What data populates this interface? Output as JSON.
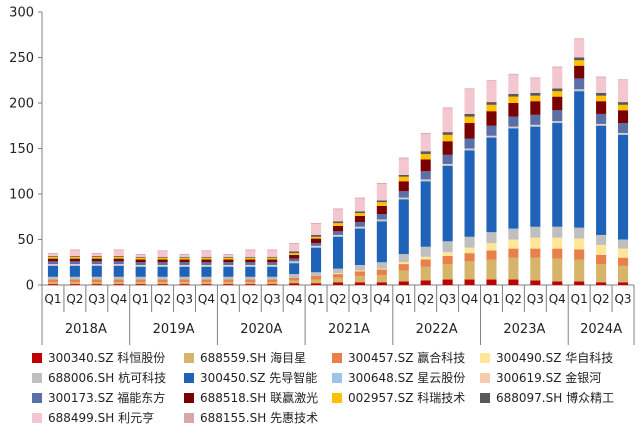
{
  "chart_data": {
    "type": "bar",
    "stacked": true,
    "title": "",
    "xlabel": "",
    "ylabel": "",
    "ylim": [
      0,
      300
    ],
    "yticks": [
      0,
      50,
      100,
      150,
      200,
      250,
      300
    ],
    "grid": false,
    "legend_position": "bottom",
    "quarter_labels": [
      "Q1",
      "Q2",
      "Q3",
      "Q4"
    ],
    "years": [
      "2018A",
      "2019A",
      "2020A",
      "2021A",
      "2022A",
      "2023A",
      "2024A"
    ],
    "categories": [
      "2018A Q1",
      "2018A Q2",
      "2018A Q3",
      "2018A Q4",
      "2019A Q1",
      "2019A Q2",
      "2019A Q3",
      "2019A Q4",
      "2020A Q1",
      "2020A Q2",
      "2020A Q3",
      "2020A Q4",
      "2021A Q1",
      "2021A Q2",
      "2021A Q3",
      "2021A Q4",
      "2022A Q1",
      "2022A Q2",
      "2022A Q3",
      "2022A Q4",
      "2023A Q1",
      "2023A Q2",
      "2023A Q3",
      "2023A Q4",
      "2024A Q1",
      "2024A Q2",
      "2024A Q3"
    ],
    "series": [
      {
        "name": "300340.SZ 科恒股份",
        "color": "#c00000",
        "values": [
          1,
          1,
          1,
          1,
          1,
          1,
          1,
          1,
          1,
          1,
          1,
          2,
          2,
          3,
          3,
          3,
          4,
          5,
          6,
          6,
          6,
          6,
          5,
          4,
          4,
          3,
          3
        ]
      },
      {
        "name": "688559.SH 海目星",
        "color": "#d6b46a",
        "values": [
          2,
          2,
          2,
          2,
          2,
          2,
          2,
          2,
          2,
          2,
          2,
          3,
          4,
          5,
          7,
          8,
          12,
          15,
          17,
          20,
          22,
          24,
          25,
          25,
          24,
          20,
          18
        ]
      },
      {
        "name": "300457.SZ 赢合科技",
        "color": "#e8804a",
        "values": [
          3,
          3,
          3,
          3,
          3,
          3,
          3,
          3,
          3,
          3,
          3,
          3,
          4,
          4,
          5,
          6,
          7,
          8,
          9,
          9,
          10,
          10,
          10,
          11,
          11,
          10,
          9
        ]
      },
      {
        "name": "300490.SZ 华自科技",
        "color": "#ffe699",
        "values": [
          0,
          0,
          0,
          0,
          0,
          0,
          0,
          0,
          0,
          0,
          0,
          0,
          0,
          1,
          1,
          1,
          2,
          3,
          4,
          6,
          8,
          10,
          12,
          12,
          12,
          11,
          10
        ]
      },
      {
        "name": "688006.SH 杭可科技",
        "color": "#bfbfbf",
        "values": [
          3,
          3,
          3,
          3,
          3,
          3,
          3,
          3,
          3,
          3,
          3,
          4,
          4,
          5,
          6,
          7,
          9,
          11,
          12,
          12,
          12,
          12,
          12,
          12,
          12,
          11,
          10
        ]
      },
      {
        "name": "300450.SZ 先导智能",
        "color": "#1f63b8",
        "values": [
          12,
          12,
          12,
          12,
          11,
          11,
          11,
          11,
          11,
          11,
          11,
          12,
          27,
          35,
          40,
          45,
          60,
          72,
          83,
          95,
          104,
          110,
          110,
          114,
          150,
          120,
          115
        ]
      },
      {
        "name": "300648.SZ 星云股份",
        "color": "#9dc3e6",
        "values": [
          1,
          1,
          1,
          1,
          1,
          1,
          1,
          1,
          1,
          1,
          1,
          1,
          1,
          1,
          1,
          1,
          1,
          1,
          1,
          1,
          1,
          1,
          1,
          1,
          1,
          1,
          1
        ]
      },
      {
        "name": "300619.SZ 金银河",
        "color": "#f8cbad",
        "values": [
          1,
          1,
          1,
          1,
          1,
          1,
          1,
          1,
          1,
          1,
          1,
          1,
          1,
          1,
          1,
          1,
          1,
          1,
          1,
          1,
          1,
          1,
          1,
          1,
          1,
          1,
          1
        ]
      },
      {
        "name": "300173.SZ 福能东方",
        "color": "#5b6fa8",
        "values": [
          3,
          3,
          3,
          3,
          3,
          3,
          3,
          3,
          3,
          3,
          3,
          3,
          3,
          4,
          5,
          6,
          7,
          9,
          10,
          11,
          11,
          11,
          11,
          12,
          12,
          11,
          11
        ]
      },
      {
        "name": "688518.SH 联赢激光",
        "color": "#7b0000",
        "values": [
          3,
          3,
          3,
          3,
          3,
          3,
          3,
          3,
          3,
          3,
          3,
          4,
          5,
          6,
          7,
          9,
          11,
          13,
          15,
          17,
          16,
          15,
          15,
          15,
          14,
          14,
          14
        ]
      },
      {
        "name": "002957.SZ 科瑞技术",
        "color": "#ffc000",
        "values": [
          2,
          2,
          2,
          2,
          2,
          2,
          2,
          2,
          2,
          2,
          2,
          2,
          2,
          3,
          3,
          4,
          5,
          6,
          7,
          7,
          7,
          7,
          6,
          6,
          6,
          6,
          6
        ]
      },
      {
        "name": "688097.SH 博众精工",
        "color": "#595959",
        "values": [
          1,
          1,
          1,
          1,
          1,
          1,
          1,
          1,
          1,
          1,
          1,
          2,
          2,
          2,
          2,
          2,
          2,
          3,
          3,
          3,
          3,
          3,
          3,
          3,
          3,
          3,
          3
        ]
      },
      {
        "name": "688499.SH 利元亨",
        "color": "#f4c7d0",
        "values": [
          2,
          6,
          2,
          6,
          2,
          6,
          2,
          6,
          2,
          7,
          7,
          8,
          12,
          13,
          14,
          18,
          18,
          19,
          26,
          27,
          23,
          21,
          16,
          23,
          20,
          17,
          24
        ]
      },
      {
        "name": "688155.SH 先惠技术",
        "color": "#d9a5a5",
        "values": [
          1,
          1,
          1,
          1,
          1,
          1,
          1,
          1,
          1,
          1,
          1,
          1,
          1,
          1,
          1,
          1,
          1,
          1,
          1,
          1,
          1,
          1,
          1,
          1,
          1,
          1,
          1
        ]
      }
    ]
  }
}
